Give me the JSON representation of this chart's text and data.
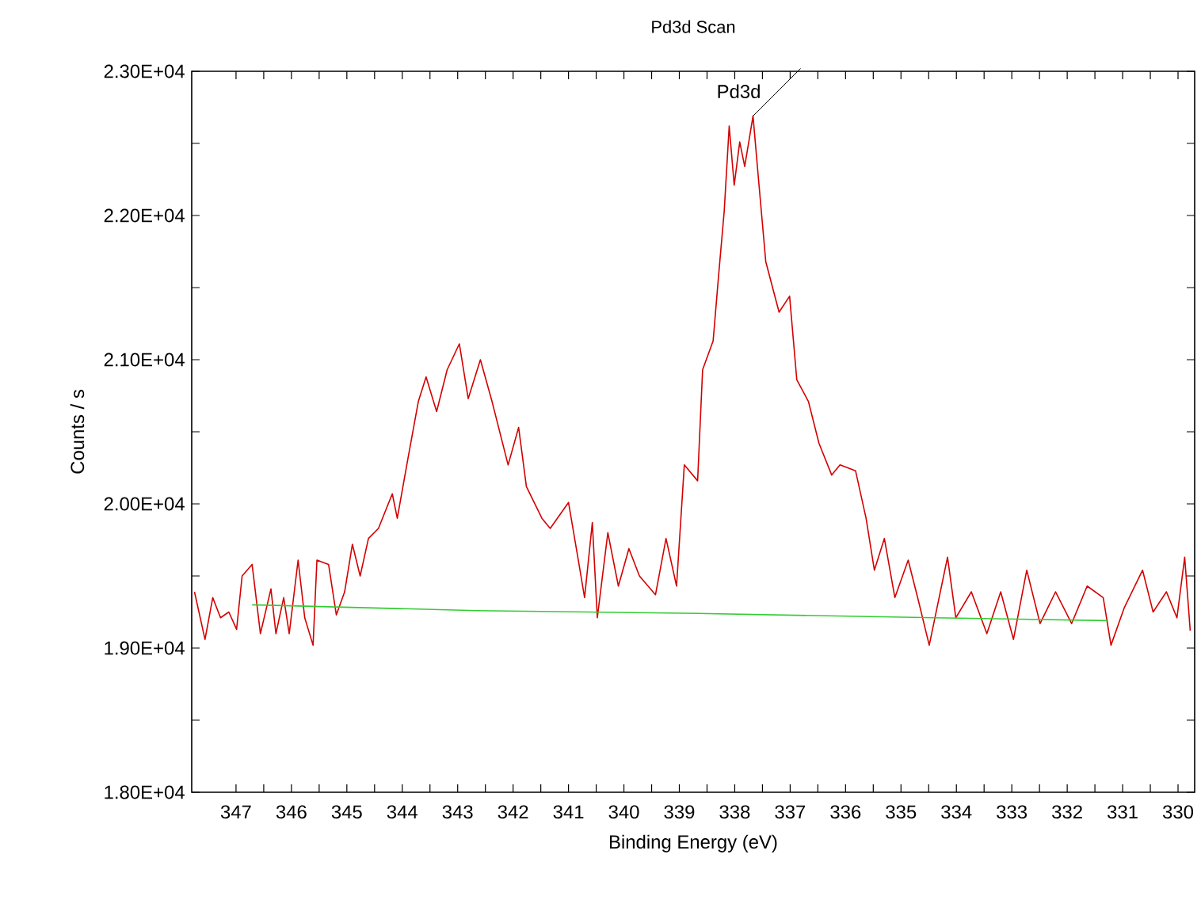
{
  "chart_data": {
    "type": "line",
    "title": "Pd3d Scan",
    "xlabel": "Binding Energy (eV)",
    "ylabel": "Counts / s",
    "xlim": [
      347.8,
      329.7
    ],
    "xticks": [
      347,
      {
        "value": 346.5,
        "label": null
      },
      346,
      {
        "value": 345.5,
        "label": null
      },
      345,
      {
        "value": 344.5,
        "label": null
      },
      344,
      {
        "value": 343.5,
        "label": null
      },
      343,
      {
        "value": 342.5,
        "label": null
      },
      342,
      {
        "value": 341.5,
        "label": null
      },
      341,
      {
        "value": 340.5,
        "label": null
      },
      340,
      {
        "value": 339.5,
        "label": null
      },
      339,
      {
        "value": 338.5,
        "label": null
      },
      338,
      {
        "value": 337.5,
        "label": null
      },
      337,
      {
        "value": 336.5,
        "label": null
      },
      336,
      {
        "value": 335.5,
        "label": null
      },
      335,
      {
        "value": 334.5,
        "label": null
      },
      334,
      {
        "value": 333.5,
        "label": null
      },
      333,
      {
        "value": 332.5,
        "label": null
      },
      332,
      {
        "value": 331.5,
        "label": null
      },
      331,
      {
        "value": 330.5,
        "label": null
      },
      330
    ],
    "ylim": [
      18000,
      23000
    ],
    "yticks": [
      {
        "value": 18000,
        "label": "1.80E+04"
      },
      {
        "value": 18500,
        "label": null
      },
      {
        "value": 19000,
        "label": "1.90E+04"
      },
      {
        "value": 19500,
        "label": null
      },
      {
        "value": 20000,
        "label": "2.00E+04"
      },
      {
        "value": 20500,
        "label": null
      },
      {
        "value": 21000,
        "label": "2.10E+04"
      },
      {
        "value": 21500,
        "label": null
      },
      {
        "value": 22000,
        "label": "2.20E+04"
      },
      {
        "value": 22500,
        "label": null
      },
      {
        "value": 23000,
        "label": "2.30E+04"
      }
    ],
    "grid": false,
    "marker": "none",
    "line_style": "solid",
    "annotations": [
      {
        "text": "Pd3d",
        "x": 337.67,
        "y": 22690
      }
    ],
    "series": [
      {
        "color": "#d40000",
        "x": [
          347.75,
          347.56,
          347.42,
          347.28,
          347.13,
          346.99,
          346.89,
          346.71,
          346.56,
          346.37,
          346.28,
          346.14,
          346.04,
          345.88,
          345.76,
          345.61,
          345.54,
          345.33,
          345.19,
          345.04,
          344.9,
          344.76,
          344.61,
          344.43,
          344.18,
          344.09,
          343.9,
          343.71,
          343.57,
          343.38,
          343.19,
          342.97,
          342.81,
          342.59,
          342.38,
          342.09,
          341.9,
          341.76,
          341.48,
          341.33,
          341.0,
          340.81,
          340.71,
          340.57,
          340.48,
          340.29,
          340.1,
          339.91,
          339.72,
          339.43,
          339.24,
          339.05,
          338.91,
          338.67,
          338.58,
          338.39,
          338.29,
          338.19,
          338.1,
          338.01,
          337.91,
          337.82,
          337.67,
          337.58,
          337.44,
          337.2,
          337.01,
          336.88,
          336.67,
          336.48,
          336.25,
          336.1,
          335.82,
          335.63,
          335.48,
          335.3,
          335.11,
          334.87,
          334.68,
          334.49,
          334.16,
          334.01,
          333.73,
          333.45,
          333.2,
          332.97,
          332.73,
          332.49,
          332.21,
          331.92,
          331.64,
          331.35,
          331.21,
          330.97,
          330.64,
          330.45,
          330.21,
          330.02,
          329.88,
          329.78
        ],
        "values": [
          19390,
          19060,
          19350,
          19210,
          19250,
          19130,
          19500,
          19580,
          19100,
          19410,
          19100,
          19350,
          19100,
          19610,
          19210,
          19020,
          19610,
          19580,
          19230,
          19390,
          19720,
          19500,
          19760,
          19830,
          20070,
          19900,
          20310,
          20710,
          20880,
          20640,
          20930,
          21110,
          20730,
          21000,
          20710,
          20270,
          20530,
          20120,
          19900,
          19830,
          20010,
          19580,
          19350,
          19870,
          19210,
          19800,
          19430,
          19690,
          19500,
          19370,
          19760,
          19430,
          20270,
          20160,
          20930,
          21130,
          21590,
          22030,
          22620,
          22210,
          22510,
          22340,
          22690,
          22290,
          21680,
          21330,
          21440,
          20860,
          20710,
          20420,
          20200,
          20270,
          20230,
          19900,
          19540,
          19760,
          19350,
          19610,
          19320,
          19020,
          19630,
          19210,
          19390,
          19100,
          19390,
          19060,
          19540,
          19170,
          19390,
          19170,
          19430,
          19350,
          19020,
          19280,
          19540,
          19250,
          19390,
          19210,
          19630,
          19120
        ]
      },
      {
        "color": "#33cc33",
        "x": [
          346.71,
          342.66,
          338.67,
          334.39,
          331.26
        ],
        "values": [
          19300,
          19260,
          19240,
          19210,
          19190
        ]
      }
    ]
  }
}
